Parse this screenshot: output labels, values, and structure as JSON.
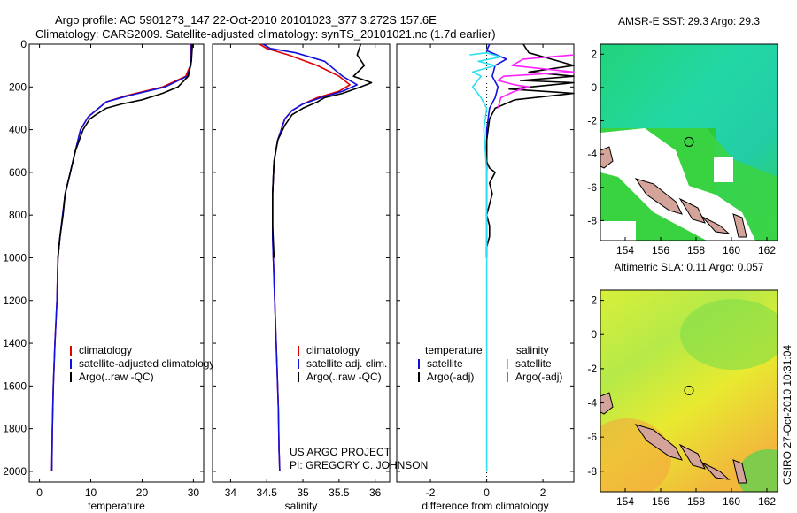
{
  "header": {
    "line1": "Argo profile: AO 5901273_147 22-Oct-2010 20101023_377 3.272S 157.6E",
    "line2": "Climatology: CARS2009. Satellite-adjusted climatology: synTS_20101021.nc (1.7d earlier)"
  },
  "credit": "CSIRO 27-Oct-2010 10:31:04",
  "project": {
    "line1": "US ARGO PROJECT",
    "line2": "PI: GREGORY C. JOHNSON"
  },
  "colors": {
    "climatology": "#e00000",
    "satellite": "#1010e0",
    "argo": "#000000",
    "sat_salinity": "#30e0f0",
    "argo_salinity": "#ff20ff"
  },
  "chart_data": [
    {
      "type": "line",
      "xlabel": "temperature",
      "xlim": [
        -2,
        32
      ],
      "ylim": [
        2050,
        0
      ],
      "xticks": [
        0,
        10,
        20,
        30
      ],
      "yticks": [
        0,
        200,
        400,
        600,
        800,
        1000,
        1200,
        1400,
        1600,
        1800,
        2000
      ],
      "legend": [
        "climatology",
        "satellite-adjusted climatology",
        "Argo(..raw -QC)"
      ],
      "series": [
        {
          "name": "climatology",
          "color": "#e00000",
          "points": [
            [
              29.5,
              0
            ],
            [
              29.5,
              50
            ],
            [
              29.4,
              100
            ],
            [
              28.5,
              150
            ],
            [
              24,
              200
            ],
            [
              17,
              240
            ],
            [
              13,
              270
            ],
            [
              11,
              310
            ],
            [
              9.5,
              340
            ],
            [
              8,
              400
            ],
            [
              7,
              500
            ],
            [
              6,
              600
            ],
            [
              5,
              700
            ],
            [
              4.5,
              800
            ],
            [
              4,
              900
            ],
            [
              3.6,
              1000
            ],
            [
              3.4,
              1200
            ],
            [
              3,
              1400
            ],
            [
              2.7,
              1600
            ],
            [
              2.5,
              1800
            ],
            [
              2.4,
              2000
            ]
          ]
        },
        {
          "name": "satellite-adjusted climatology",
          "color": "#1010e0",
          "points": [
            [
              29.6,
              0
            ],
            [
              29.6,
              50
            ],
            [
              29.5,
              100
            ],
            [
              28.8,
              150
            ],
            [
              24.5,
              200
            ],
            [
              17.5,
              240
            ],
            [
              13,
              270
            ],
            [
              11,
              310
            ],
            [
              9.5,
              340
            ],
            [
              8,
              400
            ],
            [
              7,
              500
            ],
            [
              6,
              600
            ],
            [
              5,
              700
            ],
            [
              4.5,
              800
            ],
            [
              4,
              900
            ],
            [
              3.6,
              1000
            ],
            [
              3.4,
              1200
            ],
            [
              3,
              1400
            ],
            [
              2.7,
              1600
            ],
            [
              2.5,
              1800
            ],
            [
              2.4,
              2000
            ]
          ]
        },
        {
          "name": "Argo(..raw -QC)",
          "color": "#000000",
          "points": [
            [
              29.8,
              0
            ],
            [
              29.6,
              80
            ],
            [
              29,
              150
            ],
            [
              27,
              200
            ],
            [
              24,
              230
            ],
            [
              20,
              260
            ],
            [
              16,
              280
            ],
            [
              13,
              300
            ],
            [
              11,
              330
            ],
            [
              9.8,
              350
            ],
            [
              8.5,
              400
            ],
            [
              7,
              500
            ],
            [
              6,
              600
            ],
            [
              5,
              700
            ],
            [
              4.6,
              800
            ],
            [
              4,
              900
            ],
            [
              3.6,
              1000
            ]
          ]
        }
      ]
    },
    {
      "type": "line",
      "xlabel": "salinity",
      "xlim": [
        33.75,
        36.2
      ],
      "ylim": [
        2050,
        0
      ],
      "xticks": [
        34,
        34.5,
        35,
        35.5,
        36
      ],
      "legend": [
        "climatology",
        "satellite adj. clim.",
        "Argo(..raw -QC)"
      ],
      "series": [
        {
          "name": "climatology",
          "color": "#e00000",
          "points": [
            [
              34.4,
              0
            ],
            [
              34.5,
              20
            ],
            [
              34.8,
              50
            ],
            [
              35.2,
              100
            ],
            [
              35.5,
              150
            ],
            [
              35.65,
              190
            ],
            [
              35.5,
              220
            ],
            [
              35.2,
              250
            ],
            [
              35,
              280
            ],
            [
              34.85,
              310
            ],
            [
              34.75,
              350
            ],
            [
              34.65,
              450
            ],
            [
              34.6,
              550
            ],
            [
              34.58,
              700
            ],
            [
              34.58,
              900
            ],
            [
              34.6,
              1100
            ],
            [
              34.62,
              1300
            ],
            [
              34.64,
              1500
            ],
            [
              34.66,
              1700
            ],
            [
              34.67,
              1900
            ],
            [
              34.68,
              2000
            ]
          ]
        },
        {
          "name": "satellite adj. clim.",
          "color": "#1010e0",
          "points": [
            [
              34.45,
              0
            ],
            [
              34.55,
              20
            ],
            [
              34.9,
              40
            ],
            [
              35.3,
              80
            ],
            [
              35.55,
              150
            ],
            [
              35.75,
              190
            ],
            [
              35.55,
              220
            ],
            [
              35.25,
              250
            ],
            [
              35,
              280
            ],
            [
              34.85,
              310
            ],
            [
              34.75,
              350
            ],
            [
              34.65,
              450
            ],
            [
              34.6,
              550
            ],
            [
              34.58,
              700
            ],
            [
              34.58,
              900
            ],
            [
              34.6,
              1100
            ],
            [
              34.62,
              1300
            ],
            [
              34.64,
              1500
            ],
            [
              34.66,
              1700
            ],
            [
              34.67,
              1900
            ],
            [
              34.68,
              2000
            ]
          ]
        },
        {
          "name": "Argo(..raw -QC)",
          "color": "#000000",
          "points": [
            [
              35.8,
              0
            ],
            [
              35.75,
              50
            ],
            [
              35.85,
              100
            ],
            [
              35.7,
              150
            ],
            [
              35.95,
              180
            ],
            [
              35.8,
              200
            ],
            [
              35.55,
              230
            ],
            [
              35.3,
              250
            ],
            [
              35.2,
              270
            ],
            [
              35,
              300
            ],
            [
              34.85,
              330
            ],
            [
              34.75,
              380
            ],
            [
              34.65,
              450
            ],
            [
              34.6,
              550
            ],
            [
              34.58,
              700
            ],
            [
              34.58,
              850
            ],
            [
              34.6,
              1000
            ]
          ]
        }
      ]
    },
    {
      "type": "line",
      "xlabel": "difference from climatology",
      "xlim": [
        -3.2,
        3.1
      ],
      "ylim": [
        2050,
        0
      ],
      "xticks": [
        -2,
        0,
        2
      ],
      "legend_temperature_title": "temperature",
      "legend_salinity_title": "salinity",
      "legend": [
        "satellite",
        "Argo(-adj)",
        "satellite",
        "Argo(-adj)"
      ],
      "series": [
        {
          "name": "satellite",
          "group": "temperature",
          "color": "#1010e0",
          "points": [
            [
              0.1,
              0
            ],
            [
              0,
              30
            ],
            [
              0.7,
              70
            ],
            [
              0.3,
              100
            ],
            [
              0.2,
              150
            ],
            [
              0.4,
              200
            ],
            [
              0.3,
              250
            ],
            [
              0.1,
              300
            ],
            [
              0,
              400
            ],
            [
              0,
              600
            ],
            [
              0,
              800
            ],
            [
              0,
              1000
            ]
          ]
        },
        {
          "name": "Argo(-adj)",
          "group": "temperature",
          "color": "#000000",
          "points": [
            [
              1.3,
              0
            ],
            [
              1.5,
              40
            ],
            [
              3.1,
              100
            ],
            [
              1.5,
              130
            ],
            [
              3.1,
              150
            ],
            [
              1.2,
              170
            ],
            [
              3.1,
              180
            ],
            [
              0.8,
              210
            ],
            [
              3.1,
              230
            ],
            [
              1,
              260
            ],
            [
              0.3,
              300
            ],
            [
              0.1,
              350
            ],
            [
              0,
              450
            ],
            [
              0,
              550
            ],
            [
              0.1,
              580
            ],
            [
              0.3,
              600
            ],
            [
              0.1,
              650
            ],
            [
              0.2,
              700
            ],
            [
              0,
              800
            ],
            [
              0.1,
              850
            ],
            [
              0.1,
              900
            ],
            [
              0,
              950
            ],
            [
              0,
              1000
            ]
          ]
        },
        {
          "name": "satellite",
          "group": "salinity",
          "color": "#30e0f0",
          "points": [
            [
              -0.6,
              50
            ],
            [
              0,
              40
            ],
            [
              0.5,
              60
            ],
            [
              -0.3,
              80
            ],
            [
              0.3,
              100
            ],
            [
              -0.5,
              130
            ],
            [
              -0.2,
              150
            ],
            [
              -0.5,
              200
            ],
            [
              -0.2,
              250
            ],
            [
              0,
              300
            ],
            [
              -0.1,
              400
            ],
            [
              0,
              600
            ],
            [
              0,
              1000
            ],
            [
              0,
              1500
            ],
            [
              0,
              2000
            ]
          ]
        },
        {
          "name": "Argo(-adj)",
          "group": "salinity",
          "color": "#ff20ff",
          "points": [
            [
              3.1,
              50
            ],
            [
              1.3,
              70
            ],
            [
              0.9,
              100
            ],
            [
              3.1,
              130
            ],
            [
              0.6,
              150
            ],
            [
              0.4,
              170
            ],
            [
              1,
              190
            ],
            [
              1.5,
              200
            ],
            [
              1,
              220
            ],
            [
              0.5,
              250
            ],
            [
              0.4,
              300
            ]
          ]
        }
      ]
    }
  ],
  "maps": [
    {
      "title": "AMSR-E SST: 29.3 Argo: 29.3",
      "xlim": [
        152.6,
        162.6
      ],
      "ylim": [
        -9.2,
        2.6
      ],
      "xticks": [
        154,
        156,
        158,
        160,
        162
      ],
      "yticks": [
        2,
        0,
        -2,
        -4,
        -6,
        -8
      ],
      "marker": [
        157.6,
        -3.27
      ]
    },
    {
      "title": "Altimetric SLA: 0.11 Argo: 0.057",
      "xlim": [
        152.6,
        162.6
      ],
      "ylim": [
        -9.2,
        2.6
      ],
      "xticks": [
        154,
        156,
        158,
        160,
        162
      ],
      "yticks": [
        2,
        0,
        -2,
        -4,
        -6,
        -8
      ],
      "marker": [
        157.6,
        -3.27
      ]
    }
  ]
}
